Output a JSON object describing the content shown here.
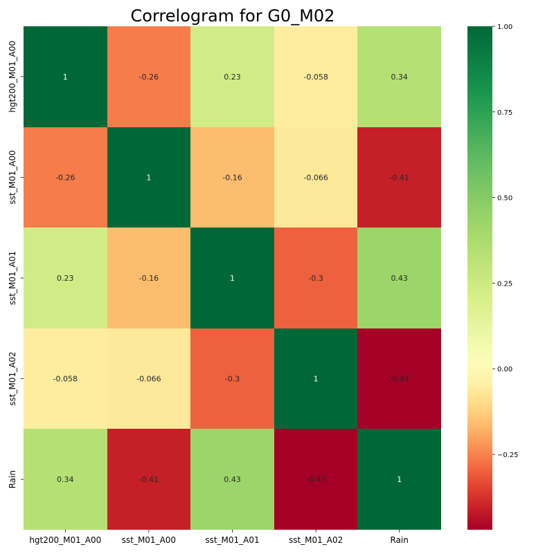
{
  "chart_data": {
    "type": "heatmap",
    "title": "Correlogram for G0_M02",
    "xlabel": "",
    "ylabel": "",
    "x_labels": [
      "hgt200_M01_A00",
      "sst_M01_A00",
      "sst_M01_A01",
      "sst_M01_A02",
      "Rain"
    ],
    "y_labels": [
      "hgt200_M01_A00",
      "sst_M01_A00",
      "sst_M01_A01",
      "sst_M01_A02",
      "Rain"
    ],
    "values": [
      [
        1,
        -0.26,
        0.23,
        -0.058,
        0.34
      ],
      [
        -0.26,
        1,
        -0.16,
        -0.066,
        -0.41
      ],
      [
        0.23,
        -0.16,
        1,
        -0.3,
        0.43
      ],
      [
        -0.058,
        -0.066,
        -0.3,
        1,
        -0.47
      ],
      [
        0.34,
        -0.41,
        0.43,
        -0.47,
        1
      ]
    ],
    "cell_labels": [
      [
        "1",
        "-0.26",
        "0.23",
        "-0.058",
        "0.34"
      ],
      [
        "-0.26",
        "1",
        "-0.16",
        "-0.066",
        "-0.41"
      ],
      [
        "0.23",
        "-0.16",
        "1",
        "-0.3",
        "0.43"
      ],
      [
        "-0.058",
        "-0.066",
        "-0.3",
        "1",
        "-0.47"
      ],
      [
        "0.34",
        "-0.41",
        "0.43",
        "-0.47",
        "1"
      ]
    ],
    "colorbar": {
      "colormap": "RdYlGn",
      "range": [
        -0.47,
        1.0
      ],
      "center": 0,
      "ticks": [
        1.0,
        0.75,
        0.5,
        0.25,
        0.0,
        -0.25
      ],
      "tick_labels": [
        "1.00",
        "0.75",
        "0.50",
        "0.25",
        "0.00",
        "−0.25"
      ]
    },
    "grid": false,
    "legend": "colorbar-right"
  }
}
